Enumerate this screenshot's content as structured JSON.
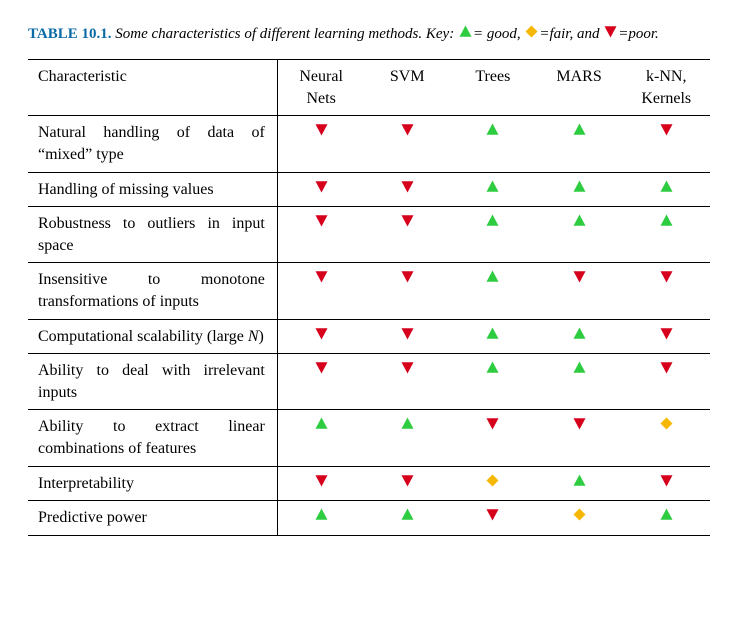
{
  "caption": {
    "label": "TABLE 10.1.",
    "text": "Some characteristics of different learning methods. Key:",
    "good_label": "= good,",
    "fair_label": "=fair, and",
    "poor_label": "=poor."
  },
  "colors": {
    "good": "#2ecc40",
    "fair": "#f5b700",
    "poor": "#d6001c",
    "label": "#0a6aa6",
    "rule": "#000000",
    "bg": "#ffffff"
  },
  "columns": [
    "Characteristic",
    "Neural Nets",
    "SVM",
    "Trees",
    "MARS",
    "k-NN, Kernels"
  ],
  "rows": [
    {
      "label": "Natural handling of data of “mixed” type",
      "values": [
        "poor",
        "poor",
        "good",
        "good",
        "poor"
      ]
    },
    {
      "label": "Handling of missing values",
      "values": [
        "poor",
        "poor",
        "good",
        "good",
        "good"
      ]
    },
    {
      "label": "Robustness to outliers in input space",
      "values": [
        "poor",
        "poor",
        "good",
        "good",
        "good"
      ]
    },
    {
      "label": "Insensitive to monotone transformations of inputs",
      "values": [
        "poor",
        "poor",
        "good",
        "poor",
        "poor"
      ]
    },
    {
      "label": "Computational scalability (large N)",
      "values": [
        "poor",
        "poor",
        "good",
        "good",
        "poor"
      ],
      "italic_N": true
    },
    {
      "label": "Ability to deal with irrelevant inputs",
      "values": [
        "poor",
        "poor",
        "good",
        "good",
        "poor"
      ]
    },
    {
      "label": "Ability to extract linear combinations of features",
      "values": [
        "good",
        "good",
        "poor",
        "poor",
        "fair"
      ]
    },
    {
      "label": "Interpretability",
      "values": [
        "poor",
        "poor",
        "fair",
        "good",
        "poor"
      ]
    },
    {
      "label": "Predictive power",
      "values": [
        "good",
        "good",
        "poor",
        "fair",
        "good"
      ]
    }
  ],
  "legend_shapes": {
    "good": "triangle-up",
    "fair": "diamond",
    "poor": "triangle-down"
  },
  "fontsizes": {
    "caption": 15,
    "table": 16
  }
}
